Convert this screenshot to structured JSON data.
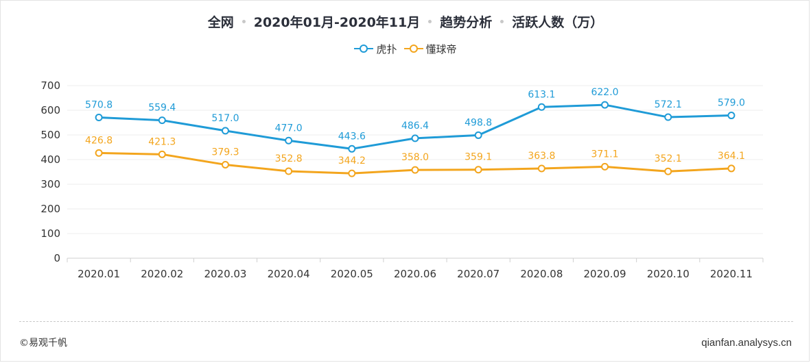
{
  "title": {
    "parts": [
      "全网",
      "2020年01月-2020年11月",
      "趋势分析",
      "活跃人数（万）"
    ]
  },
  "footer": {
    "brand": "©易观千帆",
    "site": "qianfan.analysys.cn"
  },
  "chart_data": {
    "type": "line",
    "categories": [
      "2020.01",
      "2020.02",
      "2020.03",
      "2020.04",
      "2020.05",
      "2020.06",
      "2020.07",
      "2020.08",
      "2020.09",
      "2020.10",
      "2020.11"
    ],
    "series": [
      {
        "name": "虎扑",
        "color": "#1f9bd7",
        "values": [
          570.8,
          559.4,
          517.0,
          477.0,
          443.6,
          486.4,
          498.8,
          613.1,
          622.0,
          572.1,
          579.0
        ],
        "labels": [
          "570.8",
          "559.4",
          "517.0",
          "477.0",
          "443.6",
          "486.4",
          "498.8",
          "613.1",
          "622.0",
          "572.1",
          "579.0"
        ]
      },
      {
        "name": "懂球帝",
        "color": "#f3a51d",
        "values": [
          426.8,
          421.3,
          379.3,
          352.8,
          344.2,
          358.0,
          359.1,
          363.8,
          371.1,
          352.1,
          364.1
        ],
        "labels": [
          "426.8",
          "421.3",
          "379.3",
          "352.8",
          "344.2",
          "358.0",
          "359.1",
          "363.8",
          "371.1",
          "352.1",
          "364.1"
        ]
      }
    ],
    "ylim": [
      0,
      700
    ],
    "yticks": [
      "0",
      "100",
      "200",
      "300",
      "400",
      "500",
      "600",
      "700"
    ],
    "grid": true,
    "legend_position": "top-center"
  }
}
